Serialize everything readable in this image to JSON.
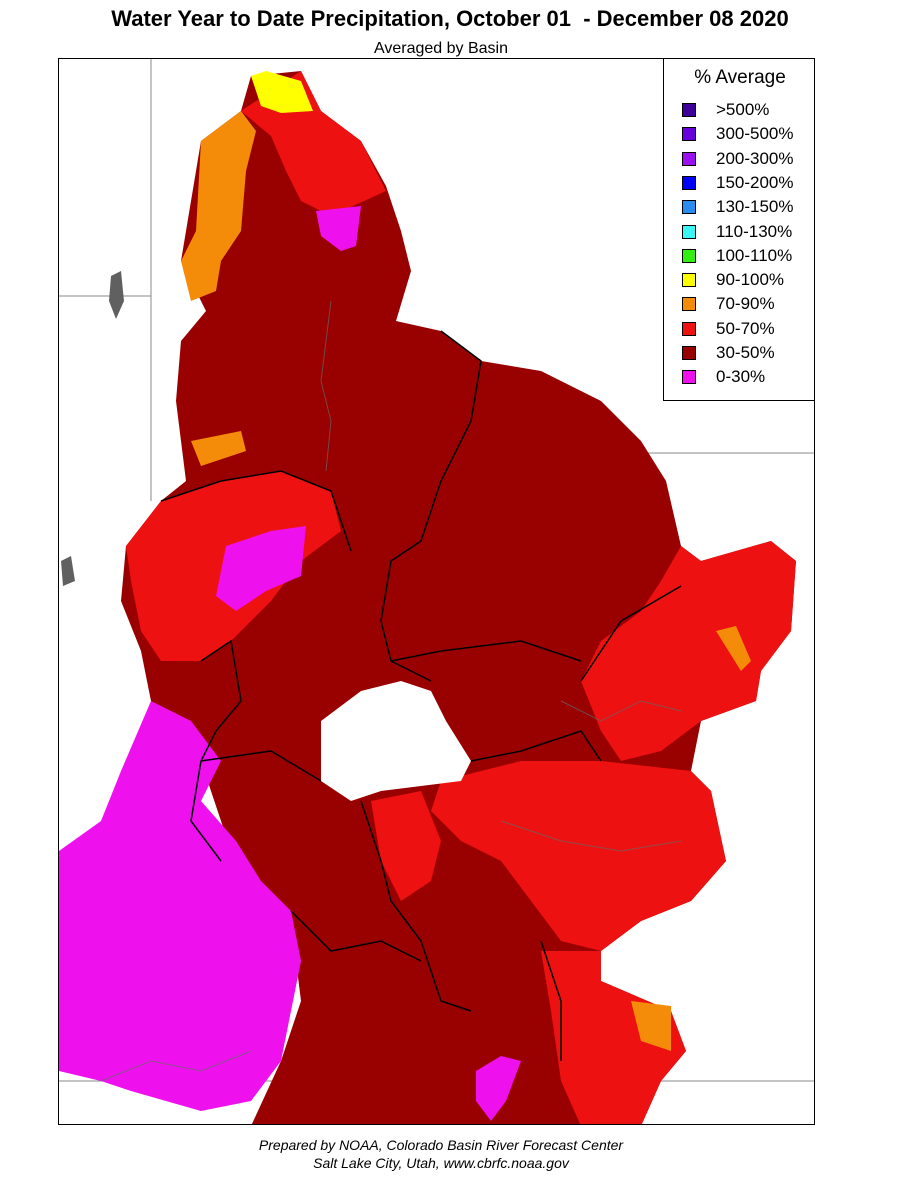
{
  "header": {
    "title": "Water Year to Date Precipitation, October 01  - December 08 2020",
    "subtitle": "Averaged by Basin"
  },
  "legend": {
    "title": "% Average",
    "items": [
      {
        "label": ">500%",
        "color": "#3d0099"
      },
      {
        "label": "300-500%",
        "color": "#6600dd"
      },
      {
        "label": "200-300%",
        "color": "#9b10f0"
      },
      {
        "label": "150-200%",
        "color": "#0000ff"
      },
      {
        "label": "130-150%",
        "color": "#2b8cf0"
      },
      {
        "label": "110-130%",
        "color": "#3cf5f5"
      },
      {
        "label": "100-110%",
        "color": "#33ee11"
      },
      {
        "label": "90-100%",
        "color": "#ffff00"
      },
      {
        "label": "70-90%",
        "color": "#f48c0a"
      },
      {
        "label": "50-70%",
        "color": "#ee1111"
      },
      {
        "label": "30-50%",
        "color": "#990000"
      },
      {
        "label": "0-30%",
        "color": "#ee11ee"
      }
    ]
  },
  "footer": {
    "line1": "Prepared by NOAA, Colorado Basin River Forecast Center",
    "line2": "Salt Lake City, Utah, www.cbrfc.noaa.gov"
  }
}
